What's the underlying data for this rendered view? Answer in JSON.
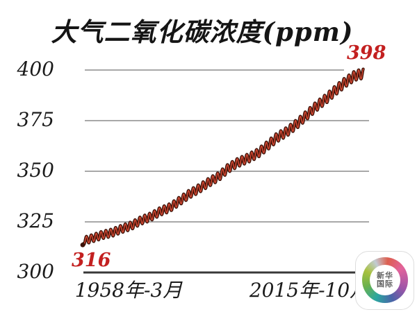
{
  "chart_data": {
    "type": "line",
    "title": "大气二氧化碳浓度(ppm)",
    "ylabel": "",
    "xlabel": "",
    "y_axis": {
      "ticks": [
        400,
        375,
        350,
        325,
        300
      ],
      "range": [
        300,
        400
      ],
      "grid": true
    },
    "x_axis": {
      "tick_labels": [
        "1958年-3月",
        "2015年-10月"
      ],
      "range_years": [
        1958.17,
        2015.79
      ]
    },
    "legend": "none",
    "series": [
      {
        "name": "大气二氧化碳浓度",
        "start_label": "316",
        "end_label": "398",
        "start_value": 316,
        "end_value": 398,
        "seasonal_amplitude_ppm": 1.8,
        "trend_anchors": [
          [
            1958.2,
            315.6
          ],
          [
            1960,
            316.9
          ],
          [
            1962,
            318.5
          ],
          [
            1964,
            319.6
          ],
          [
            1966,
            321.5
          ],
          [
            1968,
            323.1
          ],
          [
            1970,
            325.7
          ],
          [
            1972,
            327.5
          ],
          [
            1974,
            330.2
          ],
          [
            1976,
            332.1
          ],
          [
            1978,
            335.4
          ],
          [
            1980,
            338.8
          ],
          [
            1982,
            341.5
          ],
          [
            1984,
            344.6
          ],
          [
            1986,
            347.4
          ],
          [
            1988,
            351.6
          ],
          [
            1990,
            354.4
          ],
          [
            1992,
            356.4
          ],
          [
            1994,
            358.8
          ],
          [
            1996,
            362.6
          ],
          [
            1998,
            366.7
          ],
          [
            2000,
            369.5
          ],
          [
            2002,
            373.2
          ],
          [
            2004,
            377.5
          ],
          [
            2006,
            381.9
          ],
          [
            2008,
            385.6
          ],
          [
            2010,
            389.9
          ],
          [
            2012,
            393.9
          ],
          [
            2014,
            397.2
          ],
          [
            2015.8,
            398.3
          ]
        ]
      }
    ]
  },
  "watermark": {
    "line1": "新华",
    "line2": "国际"
  },
  "colors": {
    "background": "#ffffff",
    "curve_dark": "#3d1309",
    "curve_red": "#cd4631",
    "annotation_red": "#c32020",
    "gridline": "#a8a8a8",
    "axis": "#383838",
    "text": "#1a1a1a",
    "logo_ring": [
      "#dd5f4f",
      "#e2639b",
      "#9c55a8",
      "#4b64a8",
      "#2aa7a0",
      "#6cb14c",
      "#a9c23f",
      "#c2ccd4"
    ]
  }
}
